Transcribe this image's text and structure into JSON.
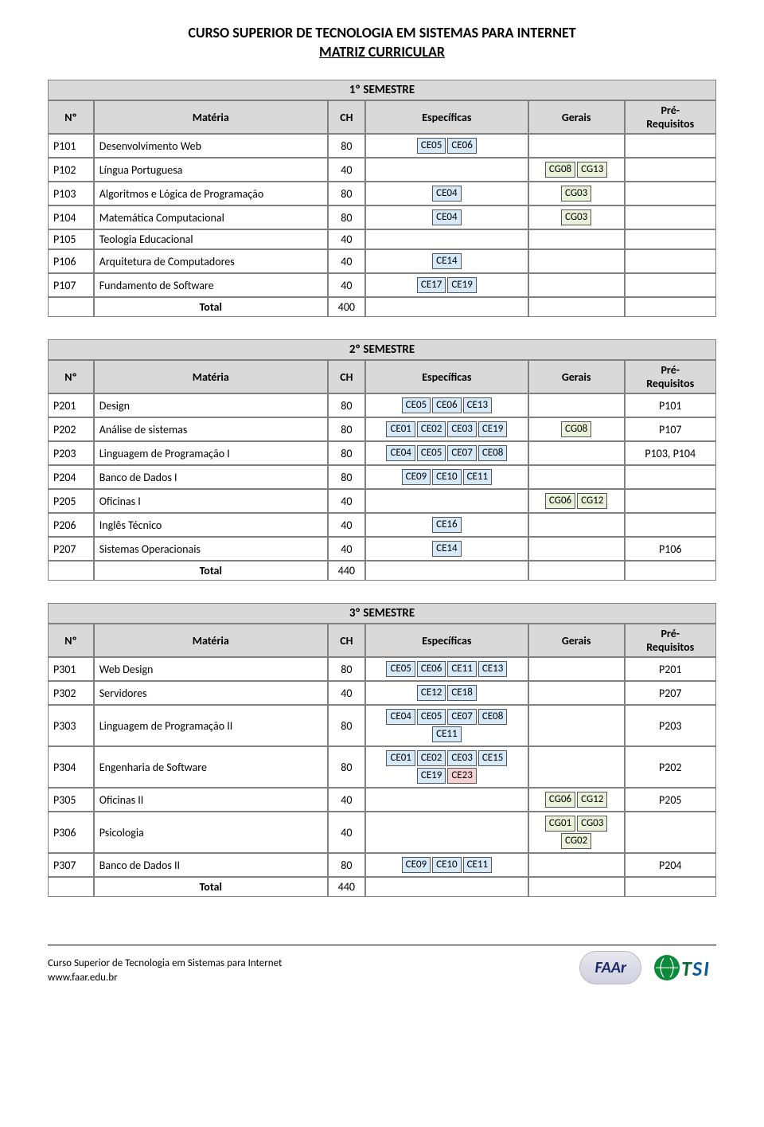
{
  "title": "CURSO SUPERIOR DE TECNOLOGIA EM SISTEMAS PARA INTERNET",
  "subtitle": "MATRIZ CURRICULAR",
  "columns": {
    "no": "Nº",
    "materia": "Matéria",
    "ch": "CH",
    "especificas": "Específicas",
    "gerais": "Gerais",
    "prereq": "Pré-Requisitos"
  },
  "total_label": "Total",
  "tag_colors": {
    "ce": "#d6e9f8",
    "cg": "#e8f3d9",
    "extra": "#f4d2d2",
    "header_bg": "#d9d9d9",
    "border": "#808080"
  },
  "semesters": [
    {
      "title": "1º SEMESTRE",
      "total": "400",
      "rows": [
        {
          "no": "P101",
          "mat": "Desenvolvimento Web",
          "ch": "80",
          "esp": [
            "CE05",
            "CE06"
          ],
          "ger": [],
          "pre": ""
        },
        {
          "no": "P102",
          "mat": "Língua Portuguesa",
          "ch": "40",
          "esp": [],
          "ger": [
            "CG08",
            "CG13"
          ],
          "pre": ""
        },
        {
          "no": "P103",
          "mat": "Algoritmos e Lógica de Programação",
          "ch": "80",
          "esp": [
            "CE04"
          ],
          "ger": [
            "CG03"
          ],
          "pre": ""
        },
        {
          "no": "P104",
          "mat": "Matemática Computacional",
          "ch": "80",
          "esp": [
            "CE04"
          ],
          "ger": [
            "CG03"
          ],
          "pre": ""
        },
        {
          "no": "P105",
          "mat": "Teologia Educacional",
          "ch": "40",
          "esp": [],
          "ger": [],
          "pre": ""
        },
        {
          "no": "P106",
          "mat": "Arquitetura de Computadores",
          "ch": "40",
          "esp": [
            "CE14"
          ],
          "ger": [],
          "pre": ""
        },
        {
          "no": "P107",
          "mat": "Fundamento de Software",
          "ch": "40",
          "esp": [
            "CE17",
            "CE19"
          ],
          "ger": [],
          "pre": ""
        }
      ]
    },
    {
      "title": "2º SEMESTRE",
      "total": "440",
      "rows": [
        {
          "no": "P201",
          "mat": "Design",
          "ch": "80",
          "esp": [
            "CE05",
            "CE06",
            "CE13"
          ],
          "ger": [],
          "pre": "P101"
        },
        {
          "no": "P202",
          "mat": "Análise de sistemas",
          "ch": "80",
          "esp": [
            "CE01",
            "CE02",
            "CE03",
            "CE19"
          ],
          "ger": [
            "CG08"
          ],
          "pre": "P107"
        },
        {
          "no": "P203",
          "mat": "Linguagem de Programação I",
          "ch": "80",
          "esp": [
            "CE04",
            "CE05",
            "CE07",
            "CE08"
          ],
          "ger": [],
          "pre": "P103, P104"
        },
        {
          "no": "P204",
          "mat": "Banco de Dados I",
          "ch": "80",
          "esp": [
            "CE09",
            "CE10",
            "CE11"
          ],
          "ger": [],
          "pre": ""
        },
        {
          "no": "P205",
          "mat": "Oficinas I",
          "ch": "40",
          "esp": [],
          "ger": [
            "CG06",
            "CG12"
          ],
          "pre": ""
        },
        {
          "no": "P206",
          "mat": "Inglês Técnico",
          "ch": "40",
          "esp": [
            "CE16"
          ],
          "ger": [],
          "pre": ""
        },
        {
          "no": "P207",
          "mat": "Sistemas Operacionais",
          "ch": "40",
          "esp": [
            "CE14"
          ],
          "ger": [],
          "pre": "P106"
        }
      ]
    },
    {
      "title": "3º SEMESTRE",
      "total": "440",
      "rows": [
        {
          "no": "P301",
          "mat": "Web Design",
          "ch": "80",
          "esp": [
            "CE05",
            "CE06",
            "CE11",
            "CE13"
          ],
          "ger": [],
          "pre": "P201"
        },
        {
          "no": "P302",
          "mat": "Servidores",
          "ch": "40",
          "esp": [
            "CE12",
            "CE18"
          ],
          "ger": [],
          "pre": "P207"
        },
        {
          "no": "P303",
          "mat": "Linguagem de Programação II",
          "ch": "80",
          "esp": [
            "CE04",
            "CE05",
            "CE07",
            "CE08",
            "CE11"
          ],
          "ger": [],
          "pre": "P203"
        },
        {
          "no": "P304",
          "mat": "Engenharia de Software",
          "ch": "80",
          "esp": [
            "CE01",
            "CE02",
            "CE03",
            "CE15",
            "CE19"
          ],
          "esp_extra": [
            "CE23"
          ],
          "ger": [],
          "pre": "P202"
        },
        {
          "no": "P305",
          "mat": "Oficinas II",
          "ch": "40",
          "esp": [],
          "ger": [
            "CG06",
            "CG12"
          ],
          "pre": "P205"
        },
        {
          "no": "P306",
          "mat": "Psicologia",
          "ch": "40",
          "esp": [],
          "ger": [
            "CG01",
            "CG03",
            "CG02"
          ],
          "pre": ""
        },
        {
          "no": "P307",
          "mat": "Banco de Dados II",
          "ch": "80",
          "esp": [
            "CE09",
            "CE10",
            "CE11"
          ],
          "ger": [],
          "pre": "P204"
        }
      ]
    }
  ],
  "footer": {
    "line1": "Curso Superior de Tecnologia em Sistemas para Internet",
    "line2": "www.faar.edu.br",
    "logo1_text": "FAAr",
    "logo2_text": "TSI"
  }
}
